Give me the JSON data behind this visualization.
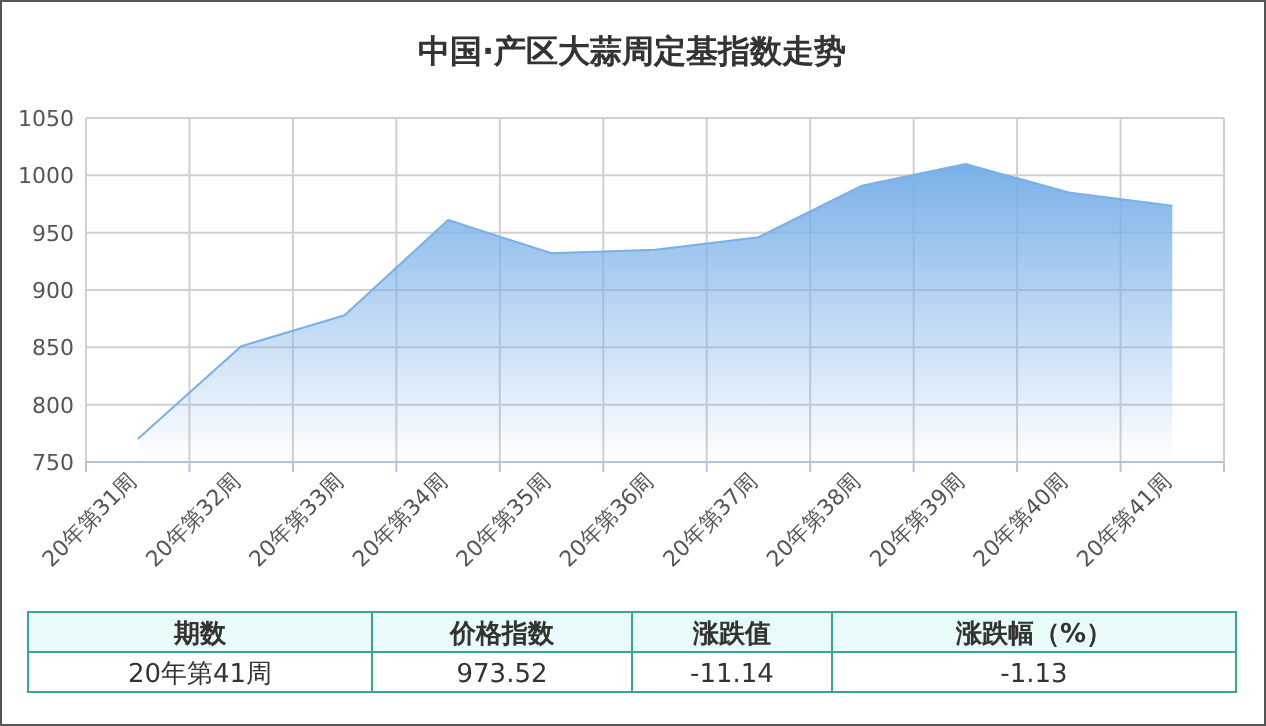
{
  "chart_data": {
    "type": "area",
    "title": "中国·产区大蒜周定基指数走势",
    "categories": [
      "20年第31周",
      "20年第32周",
      "20年第33周",
      "20年第34周",
      "20年第35周",
      "20年第36周",
      "20年第37周",
      "20年第38周",
      "20年第39周",
      "20年第40周",
      "20年第41周"
    ],
    "series": [
      {
        "color": "#7ab0e8",
        "values": [
          770,
          851,
          878,
          961,
          932,
          935,
          946,
          991,
          1010,
          985,
          973.52
        ]
      }
    ],
    "ylim": [
      750,
      1050
    ],
    "yticks": [
      750,
      800,
      850,
      900,
      950,
      1000,
      1050
    ],
    "grid": true,
    "annotations": [
      "期数",
      "价格指数",
      "涨跌值",
      "涨跌幅（%）",
      "20年第41周",
      "973.52",
      "-11.14",
      "-1.13"
    ]
  }
}
